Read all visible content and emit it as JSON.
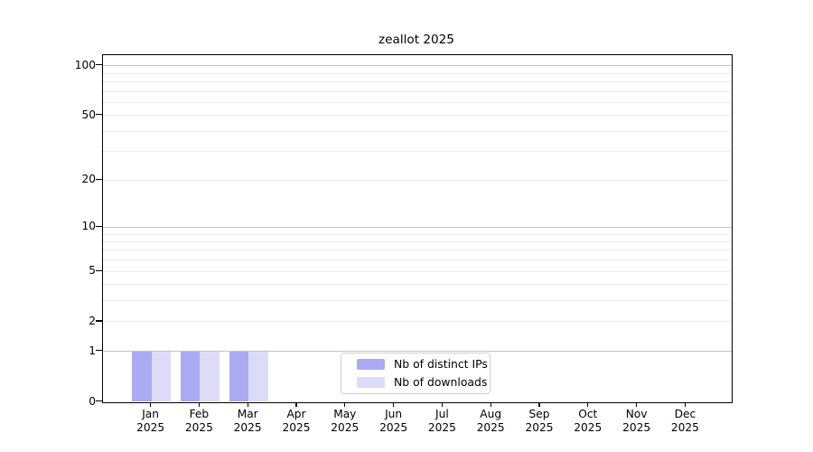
{
  "chart_data": {
    "type": "bar",
    "title": "zeallot 2025",
    "categories": [
      "Jan",
      "Feb",
      "Mar",
      "Apr",
      "May",
      "Jun",
      "Jul",
      "Aug",
      "Sep",
      "Oct",
      "Nov",
      "Dec"
    ],
    "year_label": "2025",
    "series": [
      {
        "name": "Nb of distinct IPs",
        "color": "#aaaaf2",
        "values": [
          1,
          1,
          1,
          0,
          0,
          0,
          0,
          0,
          0,
          0,
          0,
          0
        ]
      },
      {
        "name": "Nb of downloads",
        "color": "#dcdcf8",
        "values": [
          1,
          1,
          1,
          0,
          0,
          0,
          0,
          0,
          0,
          0,
          0,
          0
        ]
      }
    ],
    "y_axis": {
      "scale": "log10(value+1)",
      "tick_values": [
        0,
        1,
        2,
        5,
        10,
        20,
        50,
        100
      ],
      "tick_labels": [
        "0",
        "1",
        "2",
        "5",
        "10",
        "20",
        "50",
        "100"
      ],
      "major_gridlines": [
        1,
        10,
        100
      ],
      "minor_gridlines": [
        2,
        3,
        4,
        5,
        6,
        7,
        8,
        9,
        20,
        30,
        40,
        50,
        60,
        70,
        80,
        90
      ],
      "ylim": [
        0,
        115
      ]
    },
    "grid": "horizontal",
    "legend_position": "bottom-center"
  },
  "colors": {
    "background": "#ffffff",
    "axis": "#000000",
    "major_grid": "#c4c4c4",
    "minor_grid": "#ececec",
    "legend_border": "#cfcfcf"
  }
}
